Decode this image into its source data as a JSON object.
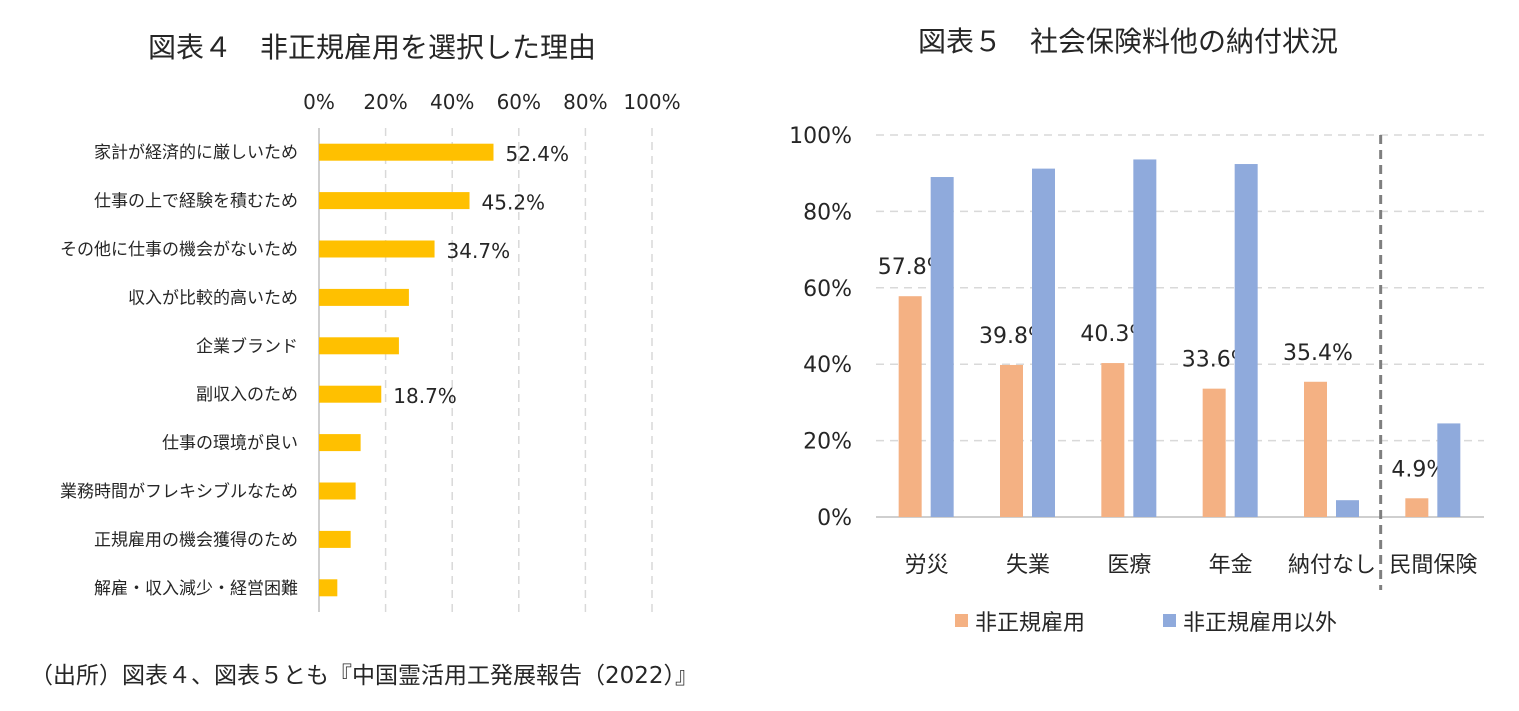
{
  "chart_data": [
    {
      "type": "bar",
      "orientation": "horizontal",
      "title": "図表４　非正規雇用を選択した理由",
      "categories": [
        "家計が経済的に厳しいため",
        "仕事の上で経験を積むため",
        "その他に仕事の機会がないため",
        "収入が比較的高いため",
        "企業ブランド",
        "副収入のため",
        "仕事の環境が良い",
        "業務時間がフレキシブルなため",
        "正規雇用の機会獲得のため",
        "解雇・収入減少・経営困難"
      ],
      "values": [
        52.4,
        45.2,
        34.7,
        27.0,
        24.0,
        18.7,
        12.5,
        11.0,
        9.5,
        5.5
      ],
      "data_labels": [
        "52.4%",
        "45.2%",
        "34.7%",
        "",
        "",
        "18.7%",
        "",
        "",
        "",
        ""
      ],
      "xlim": [
        0,
        100
      ],
      "x_ticks": [
        "0%",
        "20%",
        "40%",
        "60%",
        "80%",
        "100%"
      ],
      "x_axis_position": "top",
      "grid": true,
      "colors": {
        "bar": "#FFC000"
      }
    },
    {
      "type": "bar",
      "title": "図表５　社会保険料他の納付状況",
      "categories": [
        "労災",
        "失業",
        "医療",
        "年金",
        "納付なし",
        "民間保険"
      ],
      "series": [
        {
          "name": "非正規雇用",
          "values": [
            57.8,
            39.8,
            40.3,
            33.6,
            35.4,
            4.9
          ],
          "data_labels": [
            "57.8%",
            "39.8%",
            "40.3%",
            "33.6%",
            "35.4%",
            "4.9%"
          ]
        },
        {
          "name": "非正規雇用以外",
          "values": [
            89.0,
            91.2,
            93.6,
            92.4,
            4.4,
            24.5
          ]
        }
      ],
      "ylim": [
        0,
        100
      ],
      "y_ticks": [
        "0%",
        "20%",
        "40%",
        "60%",
        "80%",
        "100%"
      ],
      "grid": true,
      "legend": "bottom",
      "separator_before": "民間保険",
      "colors": {
        "series1": "#F4B183",
        "series2": "#8FAADC"
      }
    }
  ],
  "source": "（出所）図表４、図表５とも『中国霊活用工発展報告（2022）』"
}
